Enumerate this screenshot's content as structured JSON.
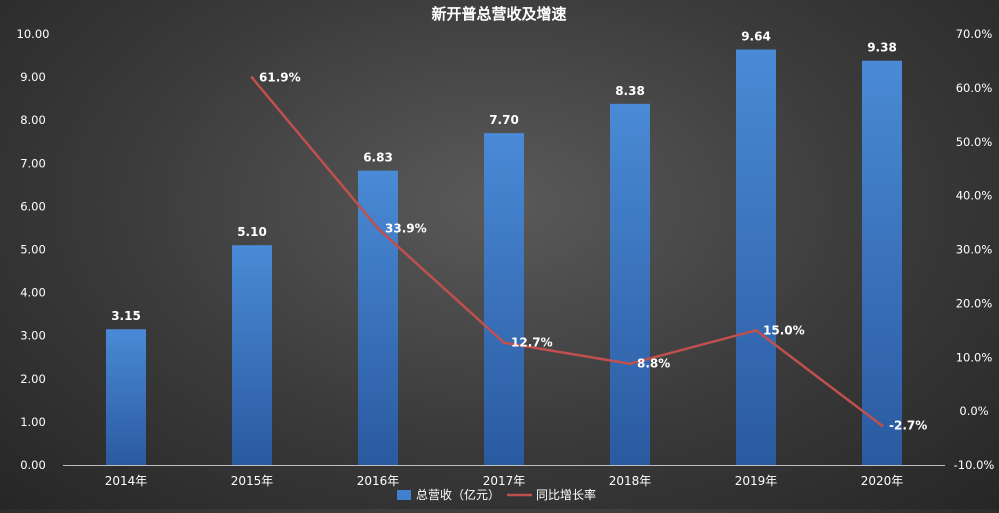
{
  "chart_data": {
    "type": "bar",
    "title": "新开普总营收及增速",
    "categories": [
      "2014年",
      "2015年",
      "2016年",
      "2017年",
      "2018年",
      "2019年",
      "2020年"
    ],
    "series": [
      {
        "name": "总营收（亿元）",
        "type": "bar",
        "axis": "left",
        "values": [
          3.15,
          5.1,
          6.83,
          7.7,
          8.38,
          9.64,
          9.38
        ],
        "labels": [
          "3.15",
          "5.10",
          "6.83",
          "7.70",
          "8.38",
          "9.64",
          "9.38"
        ],
        "color": "#3f80d0"
      },
      {
        "name": "同比增长率",
        "type": "line",
        "axis": "right",
        "values": [
          null,
          61.9,
          33.9,
          12.7,
          8.8,
          15.0,
          -2.7
        ],
        "labels": [
          null,
          "61.9%",
          "33.9%",
          "12.7%",
          "8.8%",
          "15.0%",
          "-2.7%"
        ],
        "color": "#c0504d"
      }
    ],
    "y_left": {
      "range": [
        0,
        10
      ],
      "ticks": [
        "0.00",
        "1.00",
        "2.00",
        "3.00",
        "4.00",
        "5.00",
        "6.00",
        "7.00",
        "8.00",
        "9.00",
        "10.00"
      ]
    },
    "y_right": {
      "range": [
        -10,
        70
      ],
      "ticks": [
        "-10.0%",
        "0.0%",
        "10.0%",
        "20.0%",
        "30.0%",
        "40.0%",
        "50.0%",
        "60.0%",
        "70.0%"
      ]
    },
    "legend": {
      "position": "bottom"
    },
    "grid": false
  }
}
